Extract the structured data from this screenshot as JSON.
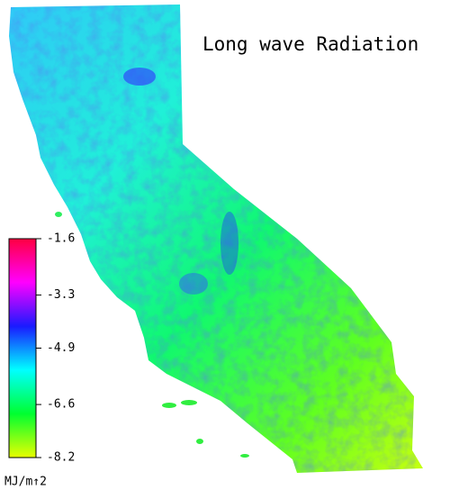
{
  "title": "Long wave Radiation",
  "colorbar": {
    "label": "MJ/m↑2",
    "range": [
      -8.2,
      -1.6
    ],
    "ticks": [
      -1.6,
      -3.3,
      -4.9,
      -6.6,
      -8.2
    ],
    "colors": [
      "#e8ff00",
      "#00ff30",
      "#00ffff",
      "#1a1aff",
      "#ff00ff",
      "#ff0040"
    ]
  }
}
